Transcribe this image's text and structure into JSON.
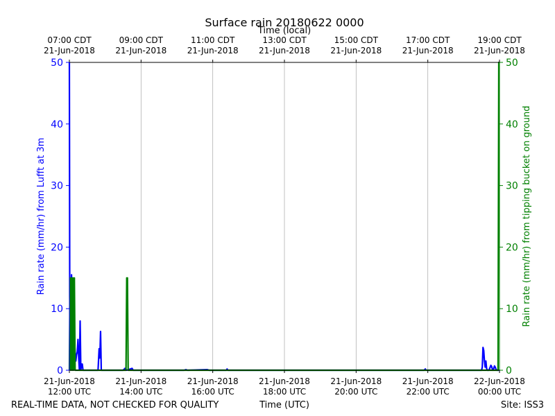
{
  "chart_data": {
    "type": "line",
    "title": "Surface rain 20180622 0000",
    "top_axis_label": "Time (local)",
    "xlabel": "Time (UTC)",
    "ylabel_left": "Rain rate (mm/hr) from Lufft at 3m",
    "ylabel_right": "Rain rate (mm/hr) from tipping bucket on ground",
    "footer_left": "REAL-TIME DATA, NOT CHECKED FOR QUALITY",
    "footer_right": "Site: ISS3",
    "xlim": [
      0,
      12
    ],
    "ylim": [
      0,
      50
    ],
    "grid_x": true,
    "yticks": [
      0,
      10,
      20,
      30,
      40,
      50
    ],
    "bottom_ticks": [
      {
        "x": 0,
        "line1": "21-Jun-2018",
        "line2": "12:00 UTC"
      },
      {
        "x": 2,
        "line1": "21-Jun-2018",
        "line2": "14:00 UTC"
      },
      {
        "x": 4,
        "line1": "21-Jun-2018",
        "line2": "16:00 UTC"
      },
      {
        "x": 6,
        "line1": "21-Jun-2018",
        "line2": "18:00 UTC"
      },
      {
        "x": 8,
        "line1": "21-Jun-2018",
        "line2": "20:00 UTC"
      },
      {
        "x": 10,
        "line1": "21-Jun-2018",
        "line2": "22:00 UTC"
      },
      {
        "x": 12,
        "line1": "22-Jun-2018",
        "line2": "00:00 UTC"
      }
    ],
    "top_ticks": [
      {
        "x": 0,
        "line1": "07:00 CDT",
        "line2": "21-Jun-2018"
      },
      {
        "x": 2,
        "line1": "09:00 CDT",
        "line2": "21-Jun-2018"
      },
      {
        "x": 4,
        "line1": "11:00 CDT",
        "line2": "21-Jun-2018"
      },
      {
        "x": 6,
        "line1": "13:00 CDT",
        "line2": "21-Jun-2018"
      },
      {
        "x": 8,
        "line1": "15:00 CDT",
        "line2": "21-Jun-2018"
      },
      {
        "x": 10,
        "line1": "17:00 CDT",
        "line2": "21-Jun-2018"
      },
      {
        "x": 12,
        "line1": "19:00 CDT",
        "line2": "21-Jun-2018"
      }
    ],
    "series": [
      {
        "axis": "left",
        "color": "#0000ff",
        "x": [
          0,
          0.01,
          0.02,
          0.04,
          0.06,
          0.08,
          0.1,
          0.12,
          0.14,
          0.16,
          0.18,
          0.2,
          0.22,
          0.24,
          0.26,
          0.28,
          0.3,
          0.32,
          0.34,
          0.36,
          0.38,
          0.4,
          0.42,
          0.44,
          0.46,
          0.48,
          0.5,
          0.8,
          0.83,
          0.85,
          0.87,
          0.89,
          0.91,
          1.5,
          1.55,
          1.6,
          1.75,
          1.78,
          1.8,
          3.2,
          3.25,
          3.3,
          3.85,
          3.9,
          4.38,
          4.4,
          4.42,
          9.9,
          9.93,
          9.95,
          11.5,
          11.52,
          11.54,
          11.56,
          11.58,
          11.6,
          11.62,
          11.64,
          11.66,
          11.68,
          11.7,
          11.72,
          11.74,
          11.76,
          11.78,
          11.8,
          11.82,
          11.84,
          11.86,
          11.88,
          11.9,
          11.92,
          11.94,
          11.96,
          12.0
        ],
        "values": [
          50,
          12,
          7.5,
          12,
          15.5,
          8,
          15,
          9,
          5,
          3,
          1.5,
          2.5,
          3,
          5,
          2,
          0,
          8,
          0,
          1,
          1,
          0,
          0,
          0,
          0,
          0,
          0,
          0,
          0,
          3.5,
          2,
          6.3,
          0,
          0,
          0,
          0.3,
          0,
          0.3,
          0,
          0,
          0,
          0.1,
          0,
          0.1,
          0,
          0,
          0.2,
          0,
          0,
          0.2,
          0,
          0,
          0.5,
          3.7,
          3.2,
          1.5,
          0.5,
          1.5,
          0.3,
          0,
          0,
          0,
          0.2,
          0.5,
          0.8,
          0.6,
          0.2,
          0,
          0.3,
          0.7,
          0.5,
          0.2,
          0,
          0,
          0,
          0
        ]
      },
      {
        "axis": "right",
        "color": "#008000",
        "x": [
          0,
          0.02,
          0.04,
          0.06,
          0.08,
          0.1,
          0.12,
          0.14,
          0.16,
          0.18,
          0.2,
          0.22,
          0.24,
          0.26,
          0.28,
          0.3,
          0.32,
          0.34,
          1.55,
          1.58,
          1.6,
          1.62,
          1.64,
          1.66,
          1.68,
          11.96,
          11.98,
          12.0
        ],
        "values": [
          0,
          15,
          0,
          15,
          0,
          15,
          0,
          15,
          0,
          0,
          0,
          0,
          0,
          0,
          0,
          0,
          0,
          0,
          0,
          0,
          15,
          15,
          0,
          0,
          0,
          0,
          50,
          50
        ]
      }
    ]
  }
}
